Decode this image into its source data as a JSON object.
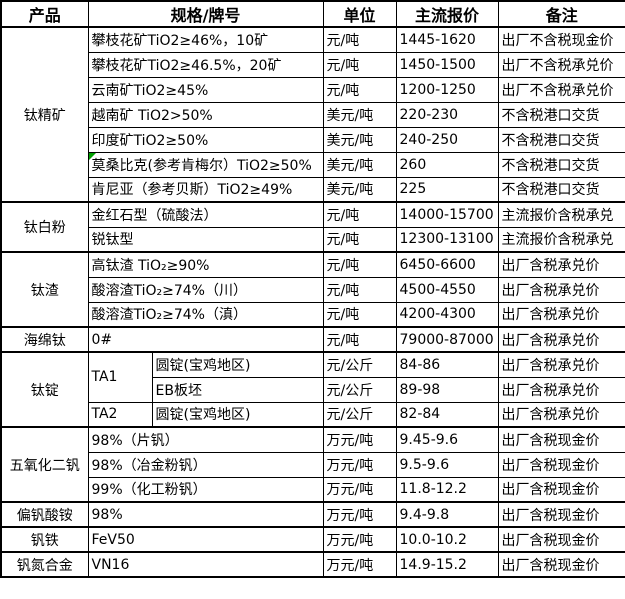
{
  "table": {
    "marker_color": "#00a000",
    "headers": [
      "产品",
      "规格/牌号",
      "单位",
      "主流报价",
      "备注"
    ],
    "groups": [
      {
        "product": "钛精矿",
        "rows": [
          {
            "spec": "攀枝花矿TiO2≥46%，10矿",
            "unit": "元/吨",
            "price": "1445-1620",
            "note": "出厂不含税现金价"
          },
          {
            "spec": "攀枝花矿TiO2≥46.5%，20矿",
            "unit": "元/吨",
            "price": "1450-1500",
            "note": "出厂不含税承兑价"
          },
          {
            "spec": "云南矿TiO2≥45%",
            "unit": "元/吨",
            "price": "1200-1250",
            "note": "出厂不含税承兑价"
          },
          {
            "spec": "越南矿 TiO2>50%",
            "unit": "美元/吨",
            "price": "220-230",
            "note": "不含税港口交货"
          },
          {
            "spec": "印度矿TiO2≥50%",
            "unit": "美元/吨",
            "price": "240-250",
            "note": "不含税港口交货"
          },
          {
            "spec": "莫桑比克(参考肯梅尔）TiO2≥50%",
            "unit": "美元/吨",
            "price": "260",
            "note": "不含税港口交货",
            "marker": true
          },
          {
            "spec": "肯尼亚（参考贝斯）TiO2≥49%",
            "unit": "美元/吨",
            "price": "225",
            "note": "不含税港口交货"
          }
        ]
      },
      {
        "product": "钛白粉",
        "rows": [
          {
            "spec": "金红石型（硫酸法）",
            "unit": "元/吨",
            "price": "14000-15700",
            "note": "主流报价含税承兑"
          },
          {
            "spec": "锐钛型",
            "unit": "元/吨",
            "price": "12300-13100",
            "note": "主流报价含税承兑"
          }
        ]
      },
      {
        "product": "钛渣",
        "rows": [
          {
            "spec": "高钛渣 TiO₂≥90%",
            "unit": "元/吨",
            "price": "6450-6600",
            "note": "出厂含税承兑价"
          },
          {
            "spec": "酸溶渣TiO₂≥74%（川）",
            "unit": "元/吨",
            "price": "4500-4550",
            "note": "出厂含税承兑价"
          },
          {
            "spec": "酸溶渣TiO₂≥74%（滇）",
            "unit": "元/吨",
            "price": "4200-4300",
            "note": "出厂含税承兑价"
          }
        ]
      },
      {
        "product": "海绵钛",
        "rows": [
          {
            "spec": "0#",
            "unit": "元/吨",
            "price": "79000-87000",
            "note": "出厂含税承兑价"
          }
        ]
      },
      {
        "product": "钛锭",
        "split": true,
        "rows": [
          {
            "grade": "TA1",
            "grade_rowspan": 2,
            "spec": "圆锭(宝鸡地区)",
            "unit": "元/公斤",
            "price": "84-86",
            "note": "出厂含税承兑价"
          },
          {
            "spec": "EB板坯",
            "unit": "元/公斤",
            "price": "89-98",
            "note": "出厂含税承兑价"
          },
          {
            "grade": "TA2",
            "grade_rowspan": 1,
            "spec": "圆锭(宝鸡地区)",
            "unit": "元/公斤",
            "price": "82-84",
            "note": "出厂含税承兑价"
          }
        ]
      },
      {
        "product": "五氧化二钒",
        "rows": [
          {
            "spec": "98%（片钒）",
            "unit": "万元/吨",
            "price": "9.45-9.6",
            "note": "出厂含税现金价"
          },
          {
            "spec": "98%（冶金粉钒）",
            "unit": "万元/吨",
            "price": "9.5-9.6",
            "note": "出厂含税现金价"
          },
          {
            "spec": "99%（化工粉钒）",
            "unit": "万元/吨",
            "price": "11.8-12.2",
            "note": "出厂含税现金价"
          }
        ]
      },
      {
        "product": "偏钒酸铵",
        "rows": [
          {
            "spec": "98%",
            "unit": "万元/吨",
            "price": "9.4-9.8",
            "note": "出厂含税现金价"
          }
        ]
      },
      {
        "product": "钒铁",
        "rows": [
          {
            "spec": "FeV50",
            "unit": "万元/吨",
            "price": "10.0-10.2",
            "note": "出厂含税现金价"
          }
        ]
      },
      {
        "product": "钒氮合金",
        "rows": [
          {
            "spec": "VN16",
            "unit": "万元/吨",
            "price": "14.9-15.2",
            "note": "出厂含税现金价"
          }
        ]
      }
    ]
  }
}
